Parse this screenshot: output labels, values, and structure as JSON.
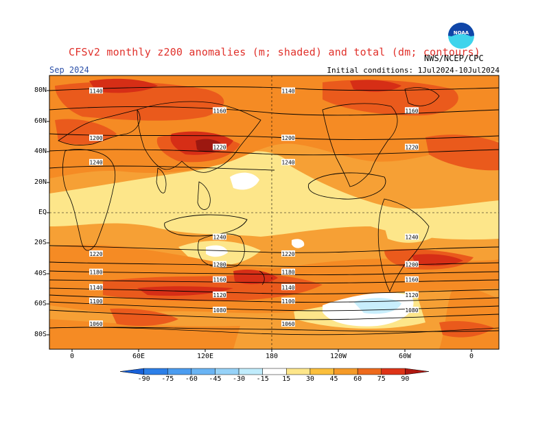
{
  "header": {
    "title": "CFSv2 monthly z200 anomalies (m; shaded) and total (dm; contours)",
    "period": "Sep 2024",
    "initial_conditions": "Initial conditions: 1Jul2024-10Jul2024",
    "agency": "NWS/NCEP/CPC",
    "logo_text": "NOAA"
  },
  "axes": {
    "lat_labels": [
      "80N",
      "60N",
      "40N",
      "20N",
      "EQ",
      "20S",
      "40S",
      "60S",
      "80S"
    ],
    "lon_labels": [
      "0",
      "60E",
      "120E",
      "180",
      "120W",
      "60W",
      "0"
    ]
  },
  "colorbar": {
    "labels": [
      "-90",
      "-75",
      "-60",
      "-45",
      "-30",
      "-15",
      "15",
      "30",
      "45",
      "60",
      "75",
      "90"
    ],
    "colors": [
      "#1860d8",
      "#2c7fe8",
      "#4b9cf0",
      "#6ab4f4",
      "#96d2f8",
      "#c0ecfc",
      "#ffffff",
      "#fde68a",
      "#fbbf3c",
      "#f59a28",
      "#ee6a1c",
      "#de3418",
      "#b01810"
    ]
  },
  "contours": [
    {
      "label": "1140",
      "lat": 80
    },
    {
      "label": "1160",
      "lat": 67
    },
    {
      "label": "1200",
      "lat": 49
    },
    {
      "label": "1220",
      "lat": 43
    },
    {
      "label": "1240",
      "lat": 33
    },
    {
      "label": "1240",
      "lat": -16
    },
    {
      "label": "1220",
      "lat": -27
    },
    {
      "label": "1200",
      "lat": -34
    },
    {
      "label": "1180",
      "lat": -39
    },
    {
      "label": "1160",
      "lat": -44
    },
    {
      "label": "1140",
      "lat": -49
    },
    {
      "label": "1120",
      "lat": -54
    },
    {
      "label": "1100",
      "lat": -58
    },
    {
      "label": "1080",
      "lat": -64
    },
    {
      "label": "1060",
      "lat": -73
    }
  ],
  "map_colors": {
    "background": "#f6a035",
    "light": "#fde68a",
    "medium": "#f58b24",
    "strong": "#ea5a1c",
    "intense": "#d62e16",
    "extreme": "#9c1810",
    "blue": "#c8eefc",
    "land": "#000000"
  }
}
